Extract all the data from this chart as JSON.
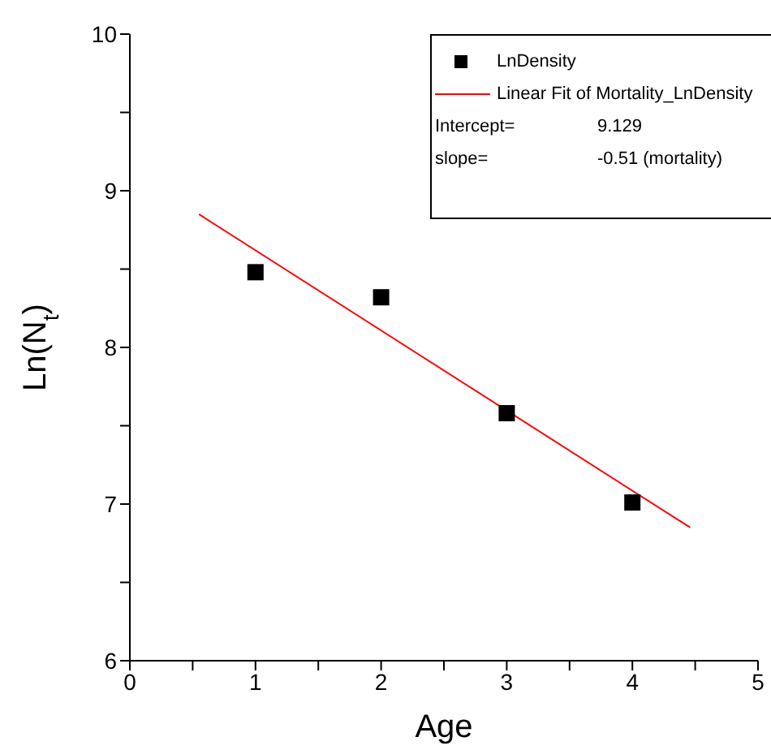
{
  "chart_data": {
    "type": "scatter",
    "xlabel": "Age",
    "ylabel": "Ln(N$_{t}$)",
    "xlim": [
      0,
      5
    ],
    "ylim": [
      6,
      10
    ],
    "xticks": [
      0,
      {
        "value": 0.5,
        "label": null
      },
      1,
      {
        "value": 1.5,
        "label": null
      },
      2,
      {
        "value": 2.5,
        "label": null
      },
      3,
      {
        "value": 3.5,
        "label": null
      },
      4,
      {
        "value": 4.5,
        "label": null
      },
      5
    ],
    "yticks": [
      6,
      {
        "value": 6.5,
        "label": null
      },
      7,
      {
        "value": 7.5,
        "label": null
      },
      8,
      {
        "value": 8.5,
        "label": null
      },
      9,
      {
        "value": 9.5,
        "label": null
      },
      10
    ],
    "series": [
      {
        "name": "LnDensity",
        "color": "#000000",
        "marker": "square",
        "x": [
          1,
          2,
          3,
          4
        ],
        "values": [
          8.48,
          8.32,
          7.58,
          7.01
        ]
      },
      {
        "name": "Linear Fit of Mortality_LnDensity",
        "type": "line",
        "color": "#ff0000",
        "marker": "none",
        "line_style": "solid",
        "x": [
          0.55,
          4.46
        ],
        "values": [
          8.85,
          6.85
        ]
      }
    ],
    "annotations": [
      "Intercept= 9.129",
      "slope= -0.51 (mortality)"
    ],
    "legend": "top right",
    "grid": false
  }
}
